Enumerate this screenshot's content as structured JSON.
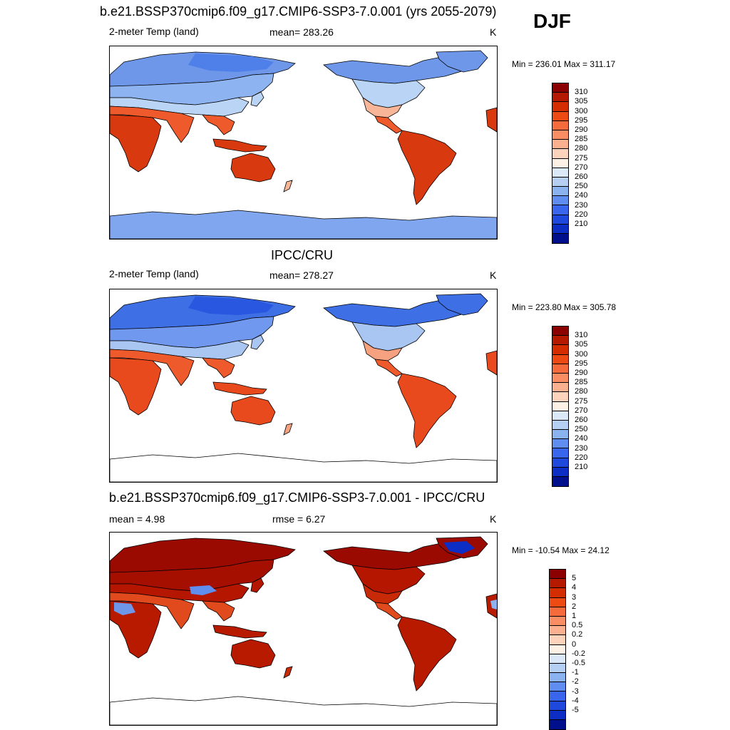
{
  "season": "DJF",
  "panels": [
    {
      "title": "b.e21.BSSP370cmip6.f09_g17.CMIP6-SSP3-7.0.001 (yrs 2055-2079)",
      "left_label": "2-meter Temp (land)",
      "center_label": "mean= 283.26",
      "unit": "K",
      "minmax": "Min = 236.01 Max = 311.17",
      "scheme": "abs_model"
    },
    {
      "title": "IPCC/CRU",
      "left_label": "2-meter Temp (land)",
      "center_label": "mean= 278.27",
      "unit": "K",
      "minmax": "Min = 223.80 Max = 305.78",
      "scheme": "abs_obs"
    },
    {
      "title": "b.e21.BSSP370cmip6.f09_g17.CMIP6-SSP3-7.0.001 - IPCC/CRU",
      "left_label": "mean =   4.98",
      "center_label": "rmse =   6.27",
      "unit": "K",
      "minmax": "Min = -10.54 Max =  24.12",
      "scheme": "diff"
    }
  ],
  "colorbars": {
    "abs": {
      "labels": [
        "310",
        "305",
        "300",
        "295",
        "290",
        "285",
        "280",
        "275",
        "270",
        "260",
        "250",
        "240",
        "230",
        "220",
        "210"
      ],
      "colors": [
        "#8b0000",
        "#b51a00",
        "#d42d00",
        "#ee4a14",
        "#f66b3c",
        "#f98e64",
        "#fbb08f",
        "#fdd3bb",
        "#fdf0e4",
        "#dbe8f8",
        "#b5d0f3",
        "#8bb3ef",
        "#5f8df0",
        "#3966ec",
        "#1f48dc",
        "#0d2ec4",
        "#000f8c"
      ]
    },
    "diff": {
      "labels": [
        "5",
        "4",
        "3",
        "2",
        "1",
        "0.5",
        "0.2",
        "0",
        "-0.2",
        "-0.5",
        "-1",
        "-2",
        "-3",
        "-4",
        "-5"
      ],
      "colors": [
        "#8b0000",
        "#b51a00",
        "#d42d00",
        "#ee4a14",
        "#f66b3c",
        "#f98e64",
        "#fbb08f",
        "#fdd3bb",
        "#fdf0e4",
        "#dbe8f8",
        "#b5d0f3",
        "#8bb3ef",
        "#5f8df0",
        "#3966ec",
        "#1f48dc",
        "#0d2ec4",
        "#000f8c"
      ]
    }
  },
  "map_colors": {
    "abs_model": {
      "arctic": "#6e97ea",
      "cold": "#8db3f0",
      "cool": "#bad4f5",
      "mild": "#f8b597",
      "warm": "#ee5a2c",
      "hot": "#d8390f",
      "antarctic": "#7fa6ee"
    },
    "abs_obs": {
      "arctic": "#3f6fe4",
      "cold": "#6f98ee",
      "cool": "#a9c6f2",
      "mild": "#f6a280",
      "warm": "#ee5a2c",
      "hot": "#e84a1e",
      "antarctic": "#ffffff"
    },
    "diff": {
      "arctic": "#9a0a00",
      "cold": "#a50f00",
      "cool": "#b41600",
      "mild": "#c82a08",
      "warm": "#e04a1c",
      "hot": "#b81a00",
      "antarctic": "#ffffff"
    }
  }
}
